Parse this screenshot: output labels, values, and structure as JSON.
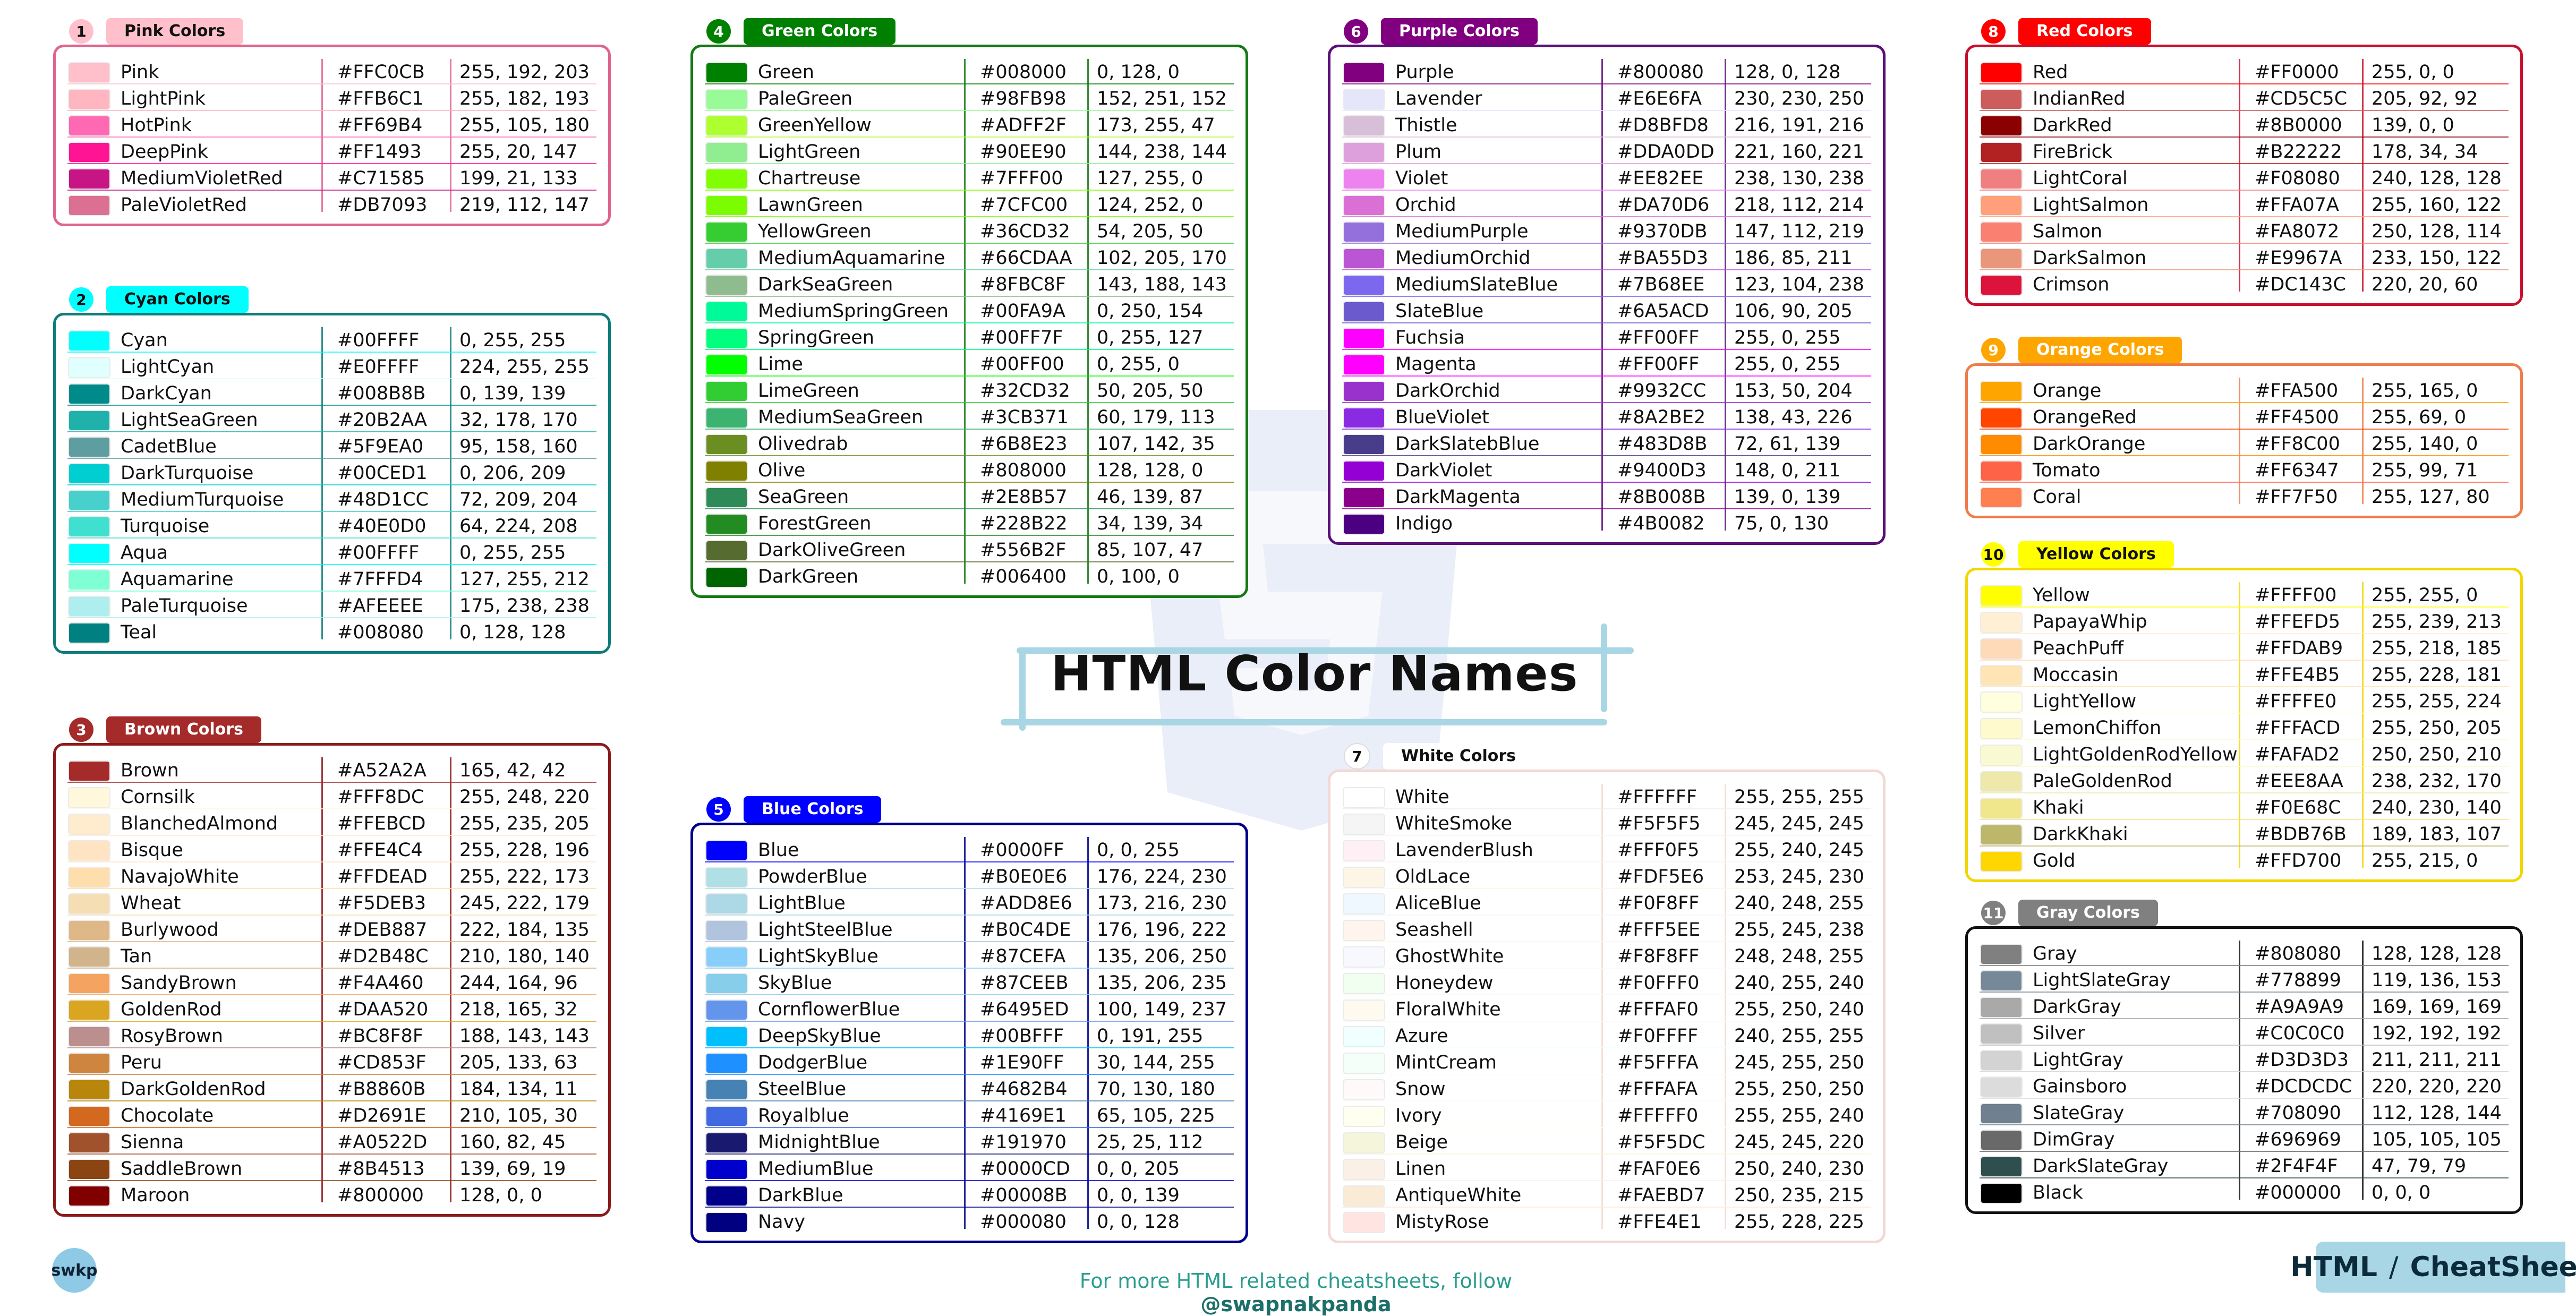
{
  "page": {
    "title": "HTML Color Names",
    "footer": {
      "prefix": "For more HTML related cheatsheets, follow ",
      "handle": "@swapnakpanda"
    },
    "logo": "swkp",
    "badge": {
      "left": "HTML",
      "right": "CheatSheet"
    }
  },
  "groups": [
    {
      "num": "1",
      "title": "Pink Colors",
      "accent": "#e0658e",
      "label_bg": "#ffc0cb",
      "label_fg": "#111111",
      "colors": [
        [
          "Pink",
          "#FFC0CB",
          "255, 192, 203"
        ],
        [
          "LightPink",
          "#FFB6C1",
          "255, 182, 193"
        ],
        [
          "HotPink",
          "#FF69B4",
          "255, 105, 180"
        ],
        [
          "DeepPink",
          "#FF1493",
          "255, 20, 147"
        ],
        [
          "MediumVioletRed",
          "#C71585",
          "199, 21, 133"
        ],
        [
          "PaleVioletRed",
          "#DB7093",
          "219, 112, 147"
        ]
      ]
    },
    {
      "num": "2",
      "title": "Cyan Colors",
      "accent": "#0e7c7b",
      "label_bg": "#00ffff",
      "label_fg": "#111111",
      "colors": [
        [
          "Cyan",
          "#00FFFF",
          "0, 255, 255"
        ],
        [
          "LightCyan",
          "#E0FFFF",
          "224, 255, 255"
        ],
        [
          "DarkCyan",
          "#008B8B",
          "0, 139, 139"
        ],
        [
          "LightSeaGreen",
          "#20B2AA",
          "32, 178, 170"
        ],
        [
          "CadetBlue",
          "#5F9EA0",
          "95, 158, 160"
        ],
        [
          "DarkTurquoise",
          "#00CED1",
          "0, 206, 209"
        ],
        [
          "MediumTurquoise",
          "#48D1CC",
          "72, 209, 204"
        ],
        [
          "Turquoise",
          "#40E0D0",
          "64, 224, 208"
        ],
        [
          "Aqua",
          "#00FFFF",
          "0, 255, 255"
        ],
        [
          "Aquamarine",
          "#7FFFD4",
          "127, 255, 212"
        ],
        [
          "PaleTurquoise",
          "#AFEEEE",
          "175, 238, 238"
        ],
        [
          "Teal",
          "#008080",
          "0, 128, 128"
        ]
      ]
    },
    {
      "num": "3",
      "title": "Brown Colors",
      "accent": "#8b1a1a",
      "label_bg": "#a52a2a",
      "label_fg": "#ffffff",
      "colors": [
        [
          "Brown",
          "#A52A2A",
          "165, 42, 42"
        ],
        [
          "Cornsilk",
          "#FFF8DC",
          "255, 248, 220"
        ],
        [
          "BlanchedAlmond",
          "#FFEBCD",
          "255, 235, 205"
        ],
        [
          "Bisque",
          "#FFE4C4",
          "255, 228, 196"
        ],
        [
          "NavajoWhite",
          "#FFDEAD",
          "255, 222, 173"
        ],
        [
          "Wheat",
          "#F5DEB3",
          "245, 222, 179"
        ],
        [
          "Burlywood",
          "#DEB887",
          "222, 184, 135"
        ],
        [
          "Tan",
          "#D2B48C",
          "210, 180, 140"
        ],
        [
          "SandyBrown",
          "#F4A460",
          "244, 164, 96"
        ],
        [
          "GoldenRod",
          "#DAA520",
          "218, 165, 32"
        ],
        [
          "RosyBrown",
          "#BC8F8F",
          "188, 143, 143"
        ],
        [
          "Peru",
          "#CD853F",
          "205, 133, 63"
        ],
        [
          "DarkGoldenRod",
          "#B8860B",
          "184, 134, 11"
        ],
        [
          "Chocolate",
          "#D2691E",
          "210, 105, 30"
        ],
        [
          "Sienna",
          "#A0522D",
          "160, 82, 45"
        ],
        [
          "SaddleBrown",
          "#8B4513",
          "139, 69, 19"
        ],
        [
          "Maroon",
          "#800000",
          "128, 0, 0"
        ]
      ]
    },
    {
      "num": "4",
      "title": "Green Colors",
      "accent": "#137a13",
      "label_bg": "#008000",
      "label_fg": "#ffffff",
      "colors": [
        [
          "Green",
          "#008000",
          "0, 128, 0"
        ],
        [
          "PaleGreen",
          "#98FB98",
          "152, 251, 152"
        ],
        [
          "GreenYellow",
          "#ADFF2F",
          "173, 255, 47"
        ],
        [
          "LightGreen",
          "#90EE90",
          "144, 238, 144"
        ],
        [
          "Chartreuse",
          "#7FFF00",
          "127, 255, 0"
        ],
        [
          "LawnGreen",
          "#7CFC00",
          "124, 252, 0"
        ],
        [
          "YellowGreen",
          "#36CD32",
          "54, 205, 50"
        ],
        [
          "MediumAquamarine",
          "#66CDAA",
          "102, 205, 170"
        ],
        [
          "DarkSeaGreen",
          "#8FBC8F",
          "143, 188, 143"
        ],
        [
          "MediumSpringGreen",
          "#00FA9A",
          "0, 250, 154"
        ],
        [
          "SpringGreen",
          "#00FF7F",
          "0, 255, 127"
        ],
        [
          "Lime",
          "#00FF00",
          "0, 255, 0"
        ],
        [
          "LimeGreen",
          "#32CD32",
          "50, 205, 50"
        ],
        [
          "MediumSeaGreen",
          "#3CB371",
          "60, 179, 113"
        ],
        [
          "Olivedrab",
          "#6B8E23",
          "107, 142, 35"
        ],
        [
          "Olive",
          "#808000",
          "128, 128, 0"
        ],
        [
          "SeaGreen",
          "#2E8B57",
          "46, 139, 87"
        ],
        [
          "ForestGreen",
          "#228B22",
          "34, 139, 34"
        ],
        [
          "DarkOliveGreen",
          "#556B2F",
          "85, 107, 47"
        ],
        [
          "DarkGreen",
          "#006400",
          "0, 100, 0"
        ]
      ]
    },
    {
      "num": "5",
      "title": "Blue Colors",
      "accent": "#00008b",
      "label_bg": "#0000ff",
      "label_fg": "#ffffff",
      "colors": [
        [
          "Blue",
          "#0000FF",
          "0, 0, 255"
        ],
        [
          "PowderBlue",
          "#B0E0E6",
          "176, 224, 230"
        ],
        [
          "LightBlue",
          "#ADD8E6",
          "173, 216, 230"
        ],
        [
          "LightSteelBlue",
          "#B0C4DE",
          "176, 196, 222"
        ],
        [
          "LightSkyBlue",
          "#87CEFA",
          "135, 206, 250"
        ],
        [
          "SkyBlue",
          "#87CEEB",
          "135, 206, 235"
        ],
        [
          "CornflowerBlue",
          "#6495ED",
          "100, 149, 237"
        ],
        [
          "DeepSkyBlue",
          "#00BFFF",
          "0, 191, 255"
        ],
        [
          "DodgerBlue",
          "#1E90FF",
          "30, 144, 255"
        ],
        [
          "SteelBlue",
          "#4682B4",
          "70, 130, 180"
        ],
        [
          "Royalblue",
          "#4169E1",
          "65, 105, 225"
        ],
        [
          "MidnightBlue",
          "#191970",
          "25, 25, 112"
        ],
        [
          "MediumBlue",
          "#0000CD",
          "0, 0, 205"
        ],
        [
          "DarkBlue",
          "#00008B",
          "0, 0, 139"
        ],
        [
          "Navy",
          "#000080",
          "0, 0, 128"
        ]
      ]
    },
    {
      "num": "6",
      "title": "Purple Colors",
      "accent": "#5b0f7a",
      "label_bg": "#800080",
      "label_fg": "#ffffff",
      "colors": [
        [
          "Purple",
          "#800080",
          "128, 0, 128"
        ],
        [
          "Lavender",
          "#E6E6FA",
          "230, 230, 250"
        ],
        [
          "Thistle",
          "#D8BFD8",
          "216, 191, 216"
        ],
        [
          "Plum",
          "#DDA0DD",
          "221, 160, 221"
        ],
        [
          "Violet",
          "#EE82EE",
          "238, 130, 238"
        ],
        [
          "Orchid",
          "#DA70D6",
          "218, 112, 214"
        ],
        [
          "MediumPurple",
          "#9370DB",
          "147, 112, 219"
        ],
        [
          "MediumOrchid",
          "#BA55D3",
          "186, 85, 211"
        ],
        [
          "MediumSlateBlue",
          "#7B68EE",
          "123, 104, 238"
        ],
        [
          "SlateBlue",
          "#6A5ACD",
          "106, 90, 205"
        ],
        [
          "Fuchsia",
          "#FF00FF",
          "255, 0, 255"
        ],
        [
          "Magenta",
          "#FF00FF",
          "255, 0, 255"
        ],
        [
          "DarkOrchid",
          "#9932CC",
          "153, 50, 204"
        ],
        [
          "BlueViolet",
          "#8A2BE2",
          "138, 43, 226"
        ],
        [
          "DarkSlatebBlue",
          "#483D8B",
          "72, 61, 139"
        ],
        [
          "DarkViolet",
          "#9400D3",
          "148, 0, 211"
        ],
        [
          "DarkMagenta",
          "#8B008B",
          "139, 0, 139"
        ],
        [
          "Indigo",
          "#4B0082",
          "75, 0, 130"
        ]
      ]
    },
    {
      "num": "7",
      "title": "White Colors",
      "accent": "#f3d9d5",
      "label_bg": "#ffffff",
      "label_fg": "#111111",
      "colors": [
        [
          "White",
          "#FFFFFF",
          "255, 255, 255"
        ],
        [
          "WhiteSmoke",
          "#F5F5F5",
          "245, 245, 245"
        ],
        [
          "LavenderBlush",
          "#FFF0F5",
          "255, 240, 245"
        ],
        [
          "OldLace",
          "#FDF5E6",
          "253, 245, 230"
        ],
        [
          "AliceBlue",
          "#F0F8FF",
          "240, 248, 255"
        ],
        [
          "Seashell",
          "#FFF5EE",
          "255, 245, 238"
        ],
        [
          "GhostWhite",
          "#F8F8FF",
          "248, 248, 255"
        ],
        [
          "Honeydew",
          "#F0FFF0",
          "240, 255, 240"
        ],
        [
          "FloralWhite",
          "#FFFAF0",
          "255, 250, 240"
        ],
        [
          "Azure",
          "#F0FFFF",
          "240, 255, 255"
        ],
        [
          "MintCream",
          "#F5FFFA",
          "245, 255, 250"
        ],
        [
          "Snow",
          "#FFFAFA",
          "255, 250, 250"
        ],
        [
          "Ivory",
          "#FFFFF0",
          "255, 255, 240"
        ],
        [
          "Beige",
          "#F5F5DC",
          "245, 245, 220"
        ],
        [
          "Linen",
          "#FAF0E6",
          "250, 240, 230"
        ],
        [
          "AntiqueWhite",
          "#FAEBD7",
          "250, 235, 215"
        ],
        [
          "MistyRose",
          "#FFE4E1",
          "255, 228, 225"
        ]
      ]
    },
    {
      "num": "8",
      "title": "Red Colors",
      "accent": "#c8102e",
      "label_bg": "#ff0000",
      "label_fg": "#ffffff",
      "colors": [
        [
          "Red",
          "#FF0000",
          "255, 0, 0"
        ],
        [
          "IndianRed",
          "#CD5C5C",
          "205, 92, 92"
        ],
        [
          "DarkRed",
          "#8B0000",
          "139, 0, 0"
        ],
        [
          "FireBrick",
          "#B22222",
          "178, 34, 34"
        ],
        [
          "LightCoral",
          "#F08080",
          "240, 128, 128"
        ],
        [
          "LightSalmon",
          "#FFA07A",
          "255, 160, 122"
        ],
        [
          "Salmon",
          "#FA8072",
          "250, 128, 114"
        ],
        [
          "DarkSalmon",
          "#E9967A",
          "233, 150, 122"
        ],
        [
          "Crimson",
          "#DC143C",
          "220, 20, 60"
        ]
      ]
    },
    {
      "num": "9",
      "title": "Orange Colors",
      "accent": "#f07c4a",
      "label_bg": "#ffa500",
      "label_fg": "#ffffff",
      "colors": [
        [
          "Orange",
          "#FFA500",
          "255, 165, 0"
        ],
        [
          "OrangeRed",
          "#FF4500",
          "255, 69, 0"
        ],
        [
          "DarkOrange",
          "#FF8C00",
          "255, 140, 0"
        ],
        [
          "Tomato",
          "#FF6347",
          "255, 99, 71"
        ],
        [
          "Coral",
          "#FF7F50",
          "255, 127, 80"
        ]
      ]
    },
    {
      "num": "10",
      "title": "Yellow Colors",
      "accent": "#f2d600",
      "label_bg": "#ffff00",
      "label_fg": "#111111",
      "colors": [
        [
          "Yellow",
          "#FFFF00",
          "255, 255, 0"
        ],
        [
          "PapayaWhip",
          "#FFEFD5",
          "255, 239, 213"
        ],
        [
          "PeachPuff",
          "#FFDAB9",
          "255, 218, 185"
        ],
        [
          "Moccasin",
          "#FFE4B5",
          "255, 228, 181"
        ],
        [
          "LightYellow",
          "#FFFFE0",
          "255, 255, 224"
        ],
        [
          "LemonChiffon",
          "#FFFACD",
          "255, 250, 205"
        ],
        [
          "LightGoldenRodYellow",
          "#FAFAD2",
          "250, 250, 210"
        ],
        [
          "PaleGoldenRod",
          "#EEE8AA",
          "238, 232, 170"
        ],
        [
          "Khaki",
          "#F0E68C",
          "240, 230, 140"
        ],
        [
          "DarkKhaki",
          "#BDB76B",
          "189, 183, 107"
        ],
        [
          "Gold",
          "#FFD700",
          "255, 215, 0"
        ]
      ]
    },
    {
      "num": "11",
      "title": "Gray Colors",
      "accent": "#111111",
      "label_bg": "#808080",
      "label_fg": "#ffffff",
      "colors": [
        [
          "Gray",
          "#808080",
          "128, 128, 128"
        ],
        [
          "LightSlateGray",
          "#778899",
          "119, 136, 153"
        ],
        [
          "DarkGray",
          "#A9A9A9",
          "169, 169, 169"
        ],
        [
          "Silver",
          "#C0C0C0",
          "192, 192, 192"
        ],
        [
          "LightGray",
          "#D3D3D3",
          "211, 211, 211"
        ],
        [
          "Gainsboro",
          "#DCDCDC",
          "220, 220, 220"
        ],
        [
          "SlateGray",
          "#708090",
          "112, 128, 144"
        ],
        [
          "DimGray",
          "#696969",
          "105, 105, 105"
        ],
        [
          "DarkSlateGray",
          "#2F4F4F",
          "47, 79, 79"
        ],
        [
          "Black",
          "#000000",
          "0, 0, 0"
        ]
      ]
    }
  ]
}
